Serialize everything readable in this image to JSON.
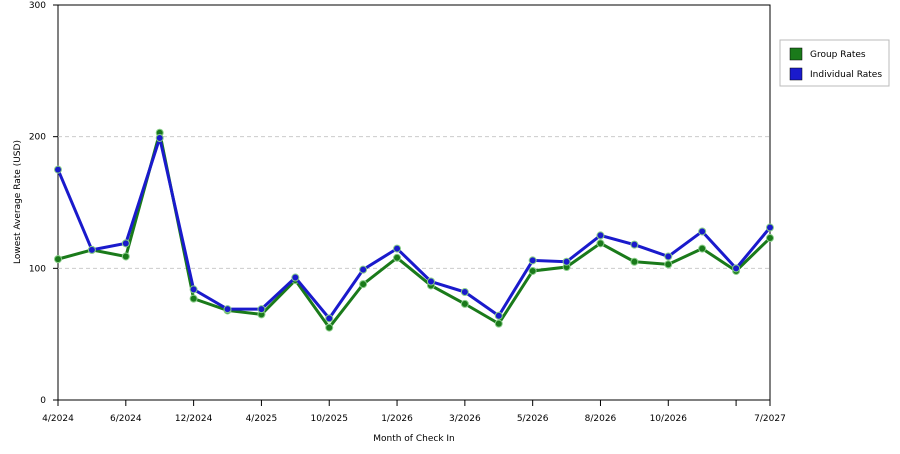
{
  "chart_data": {
    "type": "line",
    "x_label": "Month of Check In",
    "y_label": "Lowest Average Rate (USD)",
    "categories": [
      "4/2024",
      null,
      "6/2024",
      null,
      "12/2024",
      null,
      "4/2025",
      null,
      "10/2025",
      null,
      "1/2026",
      null,
      "3/2026",
      null,
      "5/2026",
      null,
      "8/2026",
      null,
      "10/2026",
      null,
      null,
      "7/2027"
    ],
    "series": [
      {
        "name": "Group Rates",
        "color": "#1a7a1a",
        "values": [
          107,
          114,
          109,
          203,
          77,
          68,
          65,
          91,
          55,
          88,
          108,
          87,
          73,
          58,
          98,
          101,
          119,
          105,
          103,
          115,
          98,
          123
        ]
      },
      {
        "name": "Individual Rates",
        "color": "#1a1acc",
        "values": [
          175,
          114,
          119,
          199,
          84,
          69,
          69,
          93,
          62,
          99,
          115,
          90,
          82,
          64,
          106,
          105,
          125,
          118,
          109,
          128,
          100,
          131
        ]
      }
    ],
    "ylim": [
      0,
      300
    ],
    "yticks": [
      0,
      100,
      200,
      300
    ],
    "grid": true,
    "legend": "right"
  }
}
